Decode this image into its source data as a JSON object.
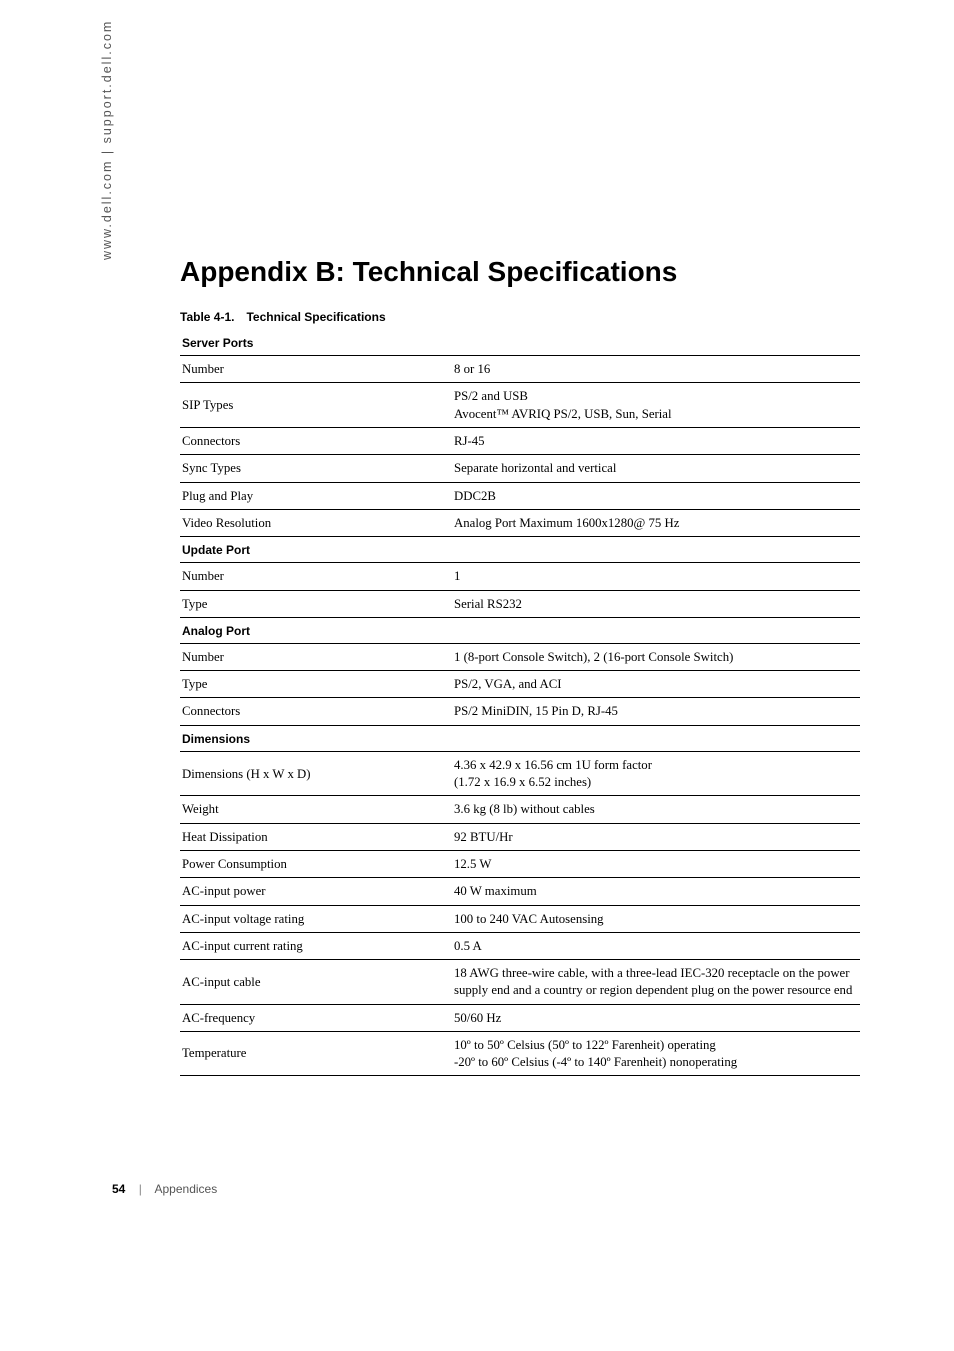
{
  "side_url": "www.dell.com | support.dell.com",
  "title": "Appendix B: Technical Specifications",
  "table_caption": "Table 4-1. Technical Specifications",
  "sections": [
    {
      "header": "Server Ports",
      "rows": [
        {
          "label": "Number",
          "value": "8 or 16"
        },
        {
          "label": "SIP Types",
          "value": "PS/2 and USB\nAvocent™ AVRIQ PS/2, USB, Sun, Serial"
        },
        {
          "label": "Connectors",
          "value": "RJ-45"
        },
        {
          "label": "Sync Types",
          "value": "Separate horizontal and vertical"
        },
        {
          "label": "Plug and Play",
          "value": "DDC2B"
        },
        {
          "label": "Video Resolution",
          "value": "Analog Port Maximum 1600x1280@ 75 Hz"
        }
      ]
    },
    {
      "header": "Update Port",
      "rows": [
        {
          "label": "Number",
          "value": "1"
        },
        {
          "label": "Type",
          "value": "Serial RS232"
        }
      ]
    },
    {
      "header": "Analog Port",
      "rows": [
        {
          "label": "Number",
          "value": "1 (8-port Console Switch), 2 (16-port Console Switch)"
        },
        {
          "label": "Type",
          "value": "PS/2, VGA, and ACI"
        },
        {
          "label": "Connectors",
          "value": "PS/2 MiniDIN, 15 Pin D, RJ-45"
        }
      ]
    },
    {
      "header": "Dimensions",
      "rows": [
        {
          "label": "Dimensions (H x W x D)",
          "value": "4.36 x 42.9 x 16.56 cm 1U form factor\n(1.72 x 16.9 x 6.52 inches)"
        },
        {
          "label": "Weight",
          "value": "3.6 kg (8 lb) without cables"
        },
        {
          "label": "Heat Dissipation",
          "value": "92 BTU/Hr"
        },
        {
          "label": "Power Consumption",
          "value": "12.5 W"
        },
        {
          "label": "AC-input power",
          "value": "40 W maximum"
        },
        {
          "label": "AC-input voltage rating",
          "value": "100 to 240 VAC Autosensing"
        },
        {
          "label": "AC-input current rating",
          "value": "0.5 A"
        },
        {
          "label": "AC-input cable",
          "value": "18 AWG three-wire cable, with a three-lead IEC-320 receptacle on the power supply end and a country or region dependent plug on the power resource end"
        },
        {
          "label": "AC-frequency",
          "value": "50/60 Hz"
        },
        {
          "label": "Temperature",
          "value": "10º to 50º Celsius (50º to 122º Farenheit) operating\n-20º to 60º Celsius (-4º to 140º Farenheit) nonoperating"
        }
      ]
    }
  ],
  "footer": {
    "page_number": "54",
    "separator": "|",
    "section_name": "Appendices"
  }
}
